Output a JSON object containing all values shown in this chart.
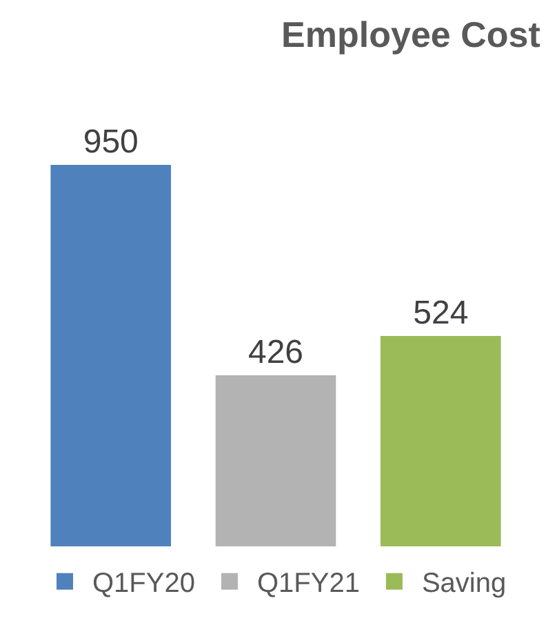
{
  "chart_data": {
    "type": "bar",
    "title": "Employee Cost",
    "categories": [
      null
    ],
    "series": [
      {
        "name": "Q1FY20",
        "color": "#4f81bd",
        "values": [
          950
        ]
      },
      {
        "name": "Q1FY21",
        "color": "#b3b3b3",
        "values": [
          426
        ]
      },
      {
        "name": "Saving",
        "color": "#9bbb59",
        "values": [
          524
        ]
      }
    ],
    "data_labels": true,
    "legend": "bottom"
  }
}
